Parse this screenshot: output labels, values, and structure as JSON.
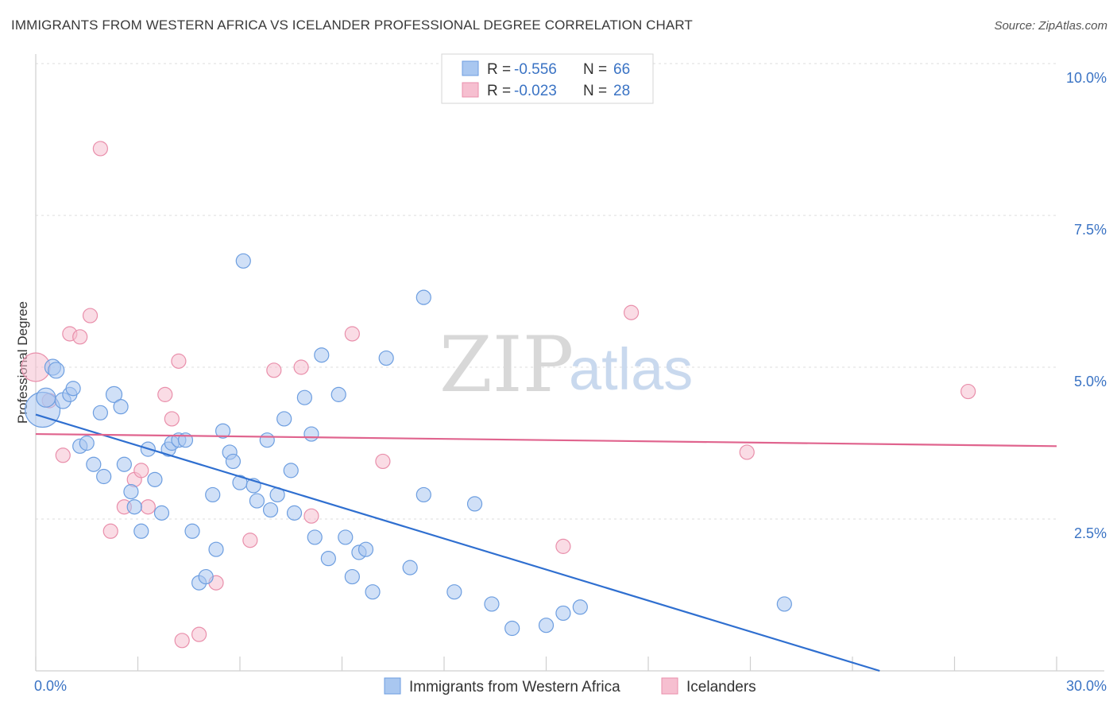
{
  "title": "IMMIGRANTS FROM WESTERN AFRICA VS ICELANDER PROFESSIONAL DEGREE CORRELATION CHART",
  "source": "Source: ZipAtlas.com",
  "watermark": {
    "zip": "ZIP",
    "atlas": "atlas"
  },
  "colors": {
    "blue_fill": "#a9c7f0",
    "blue_stroke": "#6d9ee0",
    "blue_line": "#2f6fd0",
    "pink_fill": "#f6bfd0",
    "pink_stroke": "#e98fab",
    "pink_line": "#e0648e",
    "grid": "#dcdcdc",
    "tick_label": "#3a73c4"
  },
  "legend_top": {
    "rows": [
      {
        "r_label": "R = ",
        "r_value": "-0.556",
        "n_label": "N = ",
        "n_value": "66",
        "color": "blue"
      },
      {
        "r_label": "R = ",
        "r_value": "-0.023",
        "n_label": "N = ",
        "n_value": "28",
        "color": "pink"
      }
    ]
  },
  "legend_bottom": [
    {
      "label": "Immigrants from Western Africa",
      "color": "blue"
    },
    {
      "label": "Icelanders",
      "color": "pink"
    }
  ],
  "chart_data": {
    "type": "scatter",
    "title": "IMMIGRANTS FROM WESTERN AFRICA VS ICELANDER PROFESSIONAL DEGREE CORRELATION CHART",
    "xlabel": "",
    "ylabel": "Professional Degree",
    "xlim": [
      0,
      30
    ],
    "ylim": [
      0,
      10.5
    ],
    "x_tick_labels": [
      "0.0%",
      "30.0%"
    ],
    "y_ticks": [
      2.5,
      5.0,
      7.5,
      10.0
    ],
    "y_tick_labels": [
      "2.5%",
      "5.0%",
      "7.5%",
      "10.0%"
    ],
    "grid": "horizontal dashed",
    "legend_placement": "top-center and bottom",
    "series": [
      {
        "name": "Immigrants from Western Africa",
        "color": "blue",
        "trend": {
          "x": [
            0,
            24.8
          ],
          "y": [
            4.22,
            0.0
          ]
        },
        "points": [
          [
            0.2,
            4.3,
            22
          ],
          [
            0.3,
            4.5,
            12
          ],
          [
            0.5,
            5.0,
            10
          ],
          [
            0.6,
            4.95,
            10
          ],
          [
            0.8,
            4.45,
            10
          ],
          [
            1.0,
            4.55,
            9
          ],
          [
            1.1,
            4.65,
            9
          ],
          [
            1.3,
            3.7,
            9
          ],
          [
            1.5,
            3.75,
            9
          ],
          [
            1.7,
            3.4,
            9
          ],
          [
            1.9,
            4.25,
            9
          ],
          [
            2.0,
            3.2,
            9
          ],
          [
            2.3,
            4.55,
            10
          ],
          [
            2.5,
            4.35,
            9
          ],
          [
            2.6,
            3.4,
            9
          ],
          [
            2.8,
            2.95,
            9
          ],
          [
            2.9,
            2.7,
            9
          ],
          [
            3.1,
            2.3,
            9
          ],
          [
            3.3,
            3.65,
            9
          ],
          [
            3.5,
            3.15,
            9
          ],
          [
            3.7,
            2.6,
            9
          ],
          [
            3.9,
            3.65,
            9
          ],
          [
            4.0,
            3.75,
            9
          ],
          [
            4.2,
            3.8,
            9
          ],
          [
            4.4,
            3.8,
            9
          ],
          [
            4.6,
            2.3,
            9
          ],
          [
            4.8,
            1.45,
            9
          ],
          [
            5.0,
            1.55,
            9
          ],
          [
            5.2,
            2.9,
            9
          ],
          [
            5.3,
            2.0,
            9
          ],
          [
            5.5,
            3.95,
            9
          ],
          [
            5.7,
            3.6,
            9
          ],
          [
            5.8,
            3.45,
            9
          ],
          [
            6.0,
            3.1,
            9
          ],
          [
            6.1,
            6.75,
            9
          ],
          [
            6.4,
            3.05,
            9
          ],
          [
            6.5,
            2.8,
            9
          ],
          [
            6.8,
            3.8,
            9
          ],
          [
            6.9,
            2.65,
            9
          ],
          [
            7.1,
            2.9,
            9
          ],
          [
            7.3,
            4.15,
            9
          ],
          [
            7.5,
            3.3,
            9
          ],
          [
            7.6,
            2.6,
            9
          ],
          [
            7.9,
            4.5,
            9
          ],
          [
            8.1,
            3.9,
            9
          ],
          [
            8.2,
            2.2,
            9
          ],
          [
            8.4,
            5.2,
            9
          ],
          [
            8.6,
            1.85,
            9
          ],
          [
            8.9,
            4.55,
            9
          ],
          [
            9.1,
            2.2,
            9
          ],
          [
            9.3,
            1.55,
            9
          ],
          [
            9.5,
            1.95,
            9
          ],
          [
            9.7,
            2.0,
            9
          ],
          [
            9.9,
            1.3,
            9
          ],
          [
            10.3,
            5.15,
            9
          ],
          [
            11.0,
            1.7,
            9
          ],
          [
            11.4,
            2.9,
            9
          ],
          [
            11.4,
            6.15,
            9
          ],
          [
            12.3,
            1.3,
            9
          ],
          [
            12.9,
            2.75,
            9
          ],
          [
            13.4,
            1.1,
            9
          ],
          [
            14.0,
            0.7,
            9
          ],
          [
            15.0,
            0.75,
            9
          ],
          [
            15.5,
            0.95,
            9
          ],
          [
            16.0,
            1.05,
            9
          ],
          [
            22.0,
            1.1,
            9
          ]
        ]
      },
      {
        "name": "Icelanders",
        "color": "pink",
        "trend": {
          "x": [
            0,
            30
          ],
          "y": [
            3.9,
            3.7
          ]
        },
        "points": [
          [
            0.0,
            5.0,
            18
          ],
          [
            0.4,
            4.45,
            9
          ],
          [
            0.8,
            3.55,
            9
          ],
          [
            1.0,
            5.55,
            9
          ],
          [
            1.3,
            5.5,
            9
          ],
          [
            1.6,
            5.85,
            9
          ],
          [
            1.9,
            8.6,
            9
          ],
          [
            2.2,
            2.3,
            9
          ],
          [
            2.6,
            2.7,
            9
          ],
          [
            2.9,
            3.15,
            9
          ],
          [
            3.1,
            3.3,
            9
          ],
          [
            3.3,
            2.7,
            9
          ],
          [
            3.8,
            4.55,
            9
          ],
          [
            4.0,
            4.15,
            9
          ],
          [
            4.2,
            5.1,
            9
          ],
          [
            4.3,
            0.5,
            9
          ],
          [
            4.8,
            0.6,
            9
          ],
          [
            5.3,
            1.45,
            9
          ],
          [
            6.3,
            2.15,
            9
          ],
          [
            7.0,
            4.95,
            9
          ],
          [
            7.8,
            5.0,
            9
          ],
          [
            8.1,
            2.55,
            9
          ],
          [
            9.3,
            5.55,
            9
          ],
          [
            10.2,
            3.45,
            9
          ],
          [
            15.5,
            2.05,
            9
          ],
          [
            17.5,
            5.9,
            9
          ],
          [
            20.9,
            3.6,
            9
          ],
          [
            27.4,
            4.6,
            9
          ]
        ]
      }
    ]
  }
}
